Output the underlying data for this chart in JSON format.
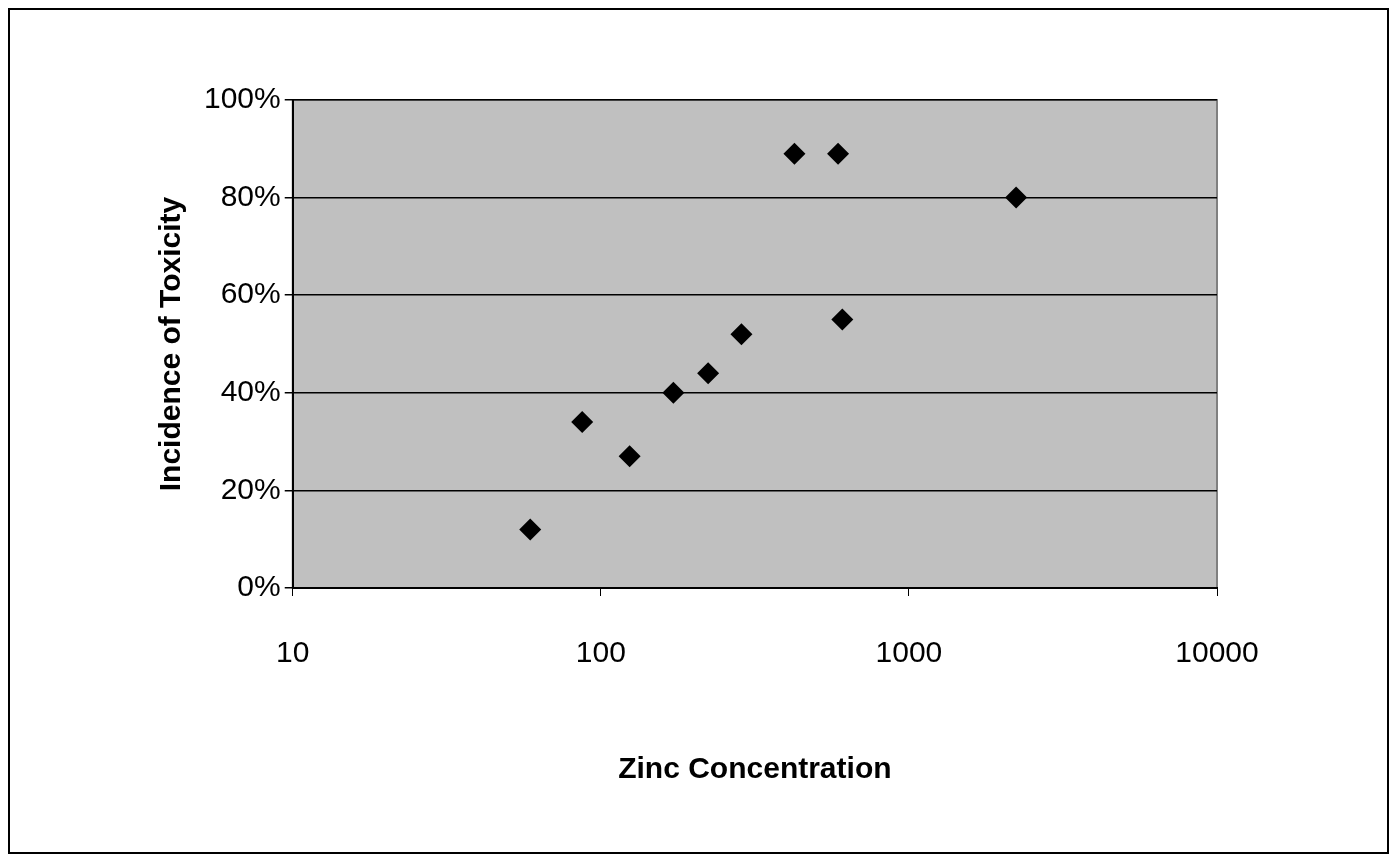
{
  "chart_data": {
    "type": "scatter",
    "xlabel": "Zinc Concentration",
    "ylabel": "Incidence of Toxicity",
    "x": [
      59,
      87,
      124,
      172,
      223,
      286,
      425,
      589,
      608,
      2228
    ],
    "series": [
      {
        "color": "#000000",
        "values": [
          12,
          34,
          27,
          40,
          44,
          52,
          89,
          89,
          55,
          80
        ]
      }
    ],
    "log": "x",
    "xlim": [
      10,
      10000
    ],
    "xticks": [
      10,
      100,
      1000,
      10000
    ],
    "ylim": [
      0,
      100
    ],
    "yticks": [
      {
        "value": 0,
        "label": "0%"
      },
      {
        "value": 20,
        "label": "20%"
      },
      {
        "value": 40,
        "label": "40%"
      },
      {
        "value": 60,
        "label": "60%"
      },
      {
        "value": 80,
        "label": "80%"
      },
      {
        "value": 100,
        "label": "100%"
      }
    ],
    "grid": "y",
    "legend": false,
    "marker": "diamond"
  }
}
